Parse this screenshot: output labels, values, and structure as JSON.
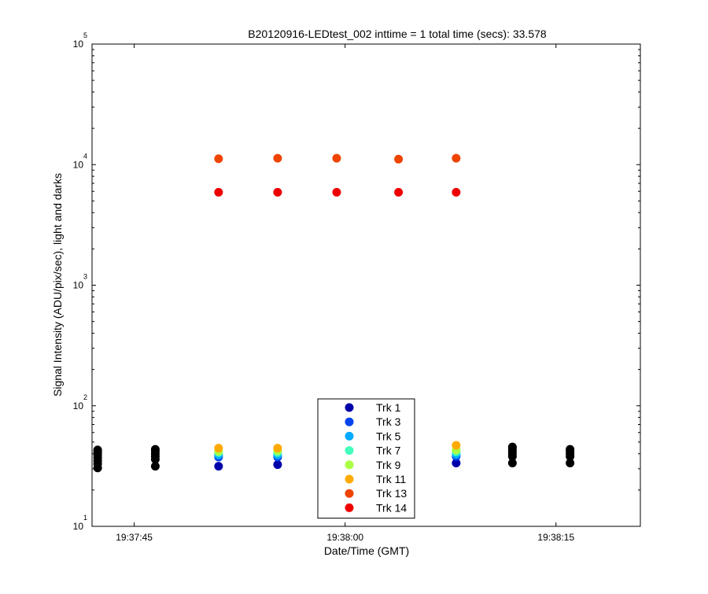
{
  "chart_data": {
    "type": "scatter",
    "title": "B20120916-LEDtest_002 inttime = 1 total time (secs): 33.578",
    "xlabel": "Date/Time (GMT)",
    "ylabel": "Signal Intensity (ADU/pix/sec), light and darks",
    "y_scale": "log",
    "ylim": [
      10,
      100000
    ],
    "xlim": [
      "19:37:42",
      "19:38:21"
    ],
    "x_ticks": [
      "19:37:45",
      "19:38:00",
      "19:38:15"
    ],
    "y_ticks": [
      {
        "base": "10",
        "exp": "1"
      },
      {
        "base": "10",
        "exp": "2"
      },
      {
        "base": "10",
        "exp": "3"
      },
      {
        "base": "10",
        "exp": "4"
      },
      {
        "base": "10",
        "exp": "5"
      }
    ],
    "grid": false,
    "legend_position": "bottom-center",
    "light_times": [
      "19:37:51.0",
      "19:37:55.2",
      "19:37:59.4",
      "19:38:03.8",
      "19:38:07.9"
    ],
    "series": [
      {
        "name": "Trk 1",
        "color": "#0000aa",
        "values": [
          31.5,
          32.5,
          null,
          null,
          33.5
        ]
      },
      {
        "name": "Trk 3",
        "color": "#0044ee",
        "values": [
          37.5,
          37.5,
          null,
          null,
          38
        ]
      },
      {
        "name": "Trk 5",
        "color": "#00aaff",
        "values": [
          39,
          39,
          null,
          null,
          39.5
        ]
      },
      {
        "name": "Trk 7",
        "color": "#44ffbb",
        "values": [
          41,
          41,
          null,
          null,
          41.5
        ]
      },
      {
        "name": "Trk 9",
        "color": "#aaff44",
        "values": [
          42,
          42.5,
          null,
          null,
          43
        ]
      },
      {
        "name": "Trk 11",
        "color": "#ffaa00",
        "values": [
          44.5,
          44.5,
          null,
          null,
          47
        ]
      },
      {
        "name": "Trk 13",
        "color": "#ee4400",
        "values": [
          11200,
          11300,
          11300,
          11100,
          11300
        ]
      },
      {
        "name": "Trk 14",
        "color": "#ee0000",
        "values": [
          5900,
          5900,
          5900,
          5900,
          5900
        ]
      }
    ],
    "darks": {
      "color": "#000000",
      "times": [
        "19:37:42.4",
        "19:37:46.5",
        "19:37:59.9",
        "19:38:03.0",
        "19:38:11.9",
        "19:38:16.0"
      ],
      "values": [
        [
          30.5,
          33,
          35,
          37,
          39,
          40.5,
          42,
          43
        ],
        [
          31.5,
          36,
          38,
          40,
          42,
          43.5
        ],
        [
          31,
          34,
          36.5,
          38.5,
          40
        ],
        [
          33,
          35.5,
          37.5,
          39.5
        ],
        [
          33.5,
          38,
          40,
          42,
          44,
          45.5
        ],
        [
          33.5,
          38,
          40,
          42,
          43.5
        ]
      ]
    }
  }
}
